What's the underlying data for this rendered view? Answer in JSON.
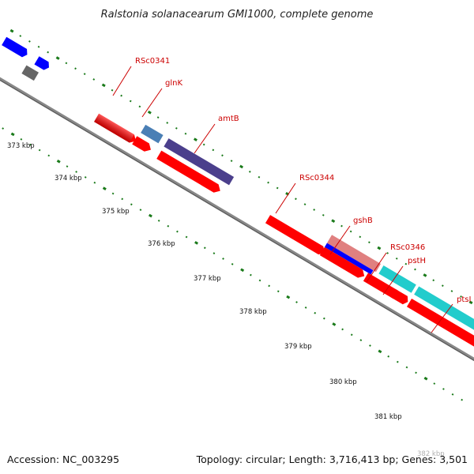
{
  "title": "Ralstonia solanacearum GMI1000, complete genome",
  "footer": {
    "accession": "Accession: NC_003295",
    "topology": "Topology: circular; Length: 3,716,413 bp; Genes: 3,501"
  },
  "colors": {
    "red_gene": "#ff0000",
    "blue_gene": "#0000ff",
    "navy_gene": "#4b3f8c",
    "steel_gene": "#4a7fb5",
    "cyan_gene": "#22cccc",
    "salmon_gene": "#e08080",
    "gray_gene": "#666666",
    "backbone": "#888888",
    "tick": "#1a7a1a",
    "label": "#cc0000"
  },
  "ticks": [
    "373 kbp",
    "374 kbp",
    "375 kbp",
    "376 kbp",
    "377 kbp",
    "378 kbp",
    "379 kbp",
    "380 kbp",
    "381 kbp",
    "382 kbp"
  ],
  "genes": [
    "RSc0341",
    "glnK",
    "amtB",
    "RSc0344",
    "gshB",
    "RSc0346",
    "pstH",
    "ptsI"
  ]
}
